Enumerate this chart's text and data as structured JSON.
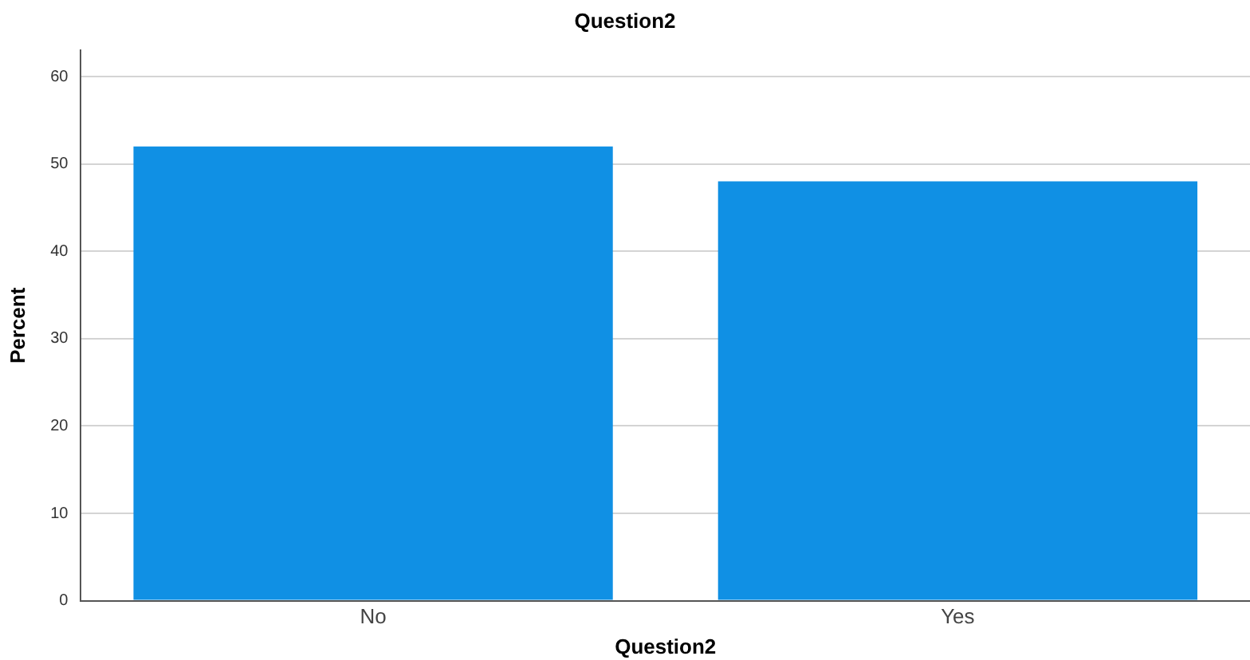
{
  "chart_data": {
    "type": "bar",
    "title": "Question2",
    "xlabel": "Question2",
    "ylabel": "Percent",
    "categories": [
      "No",
      "Yes"
    ],
    "values": [
      52,
      48
    ],
    "color": "#1090e4",
    "ylim": [
      0,
      63
    ],
    "yticks": [
      0,
      10,
      20,
      30,
      40,
      50,
      60
    ],
    "grid": "y"
  }
}
